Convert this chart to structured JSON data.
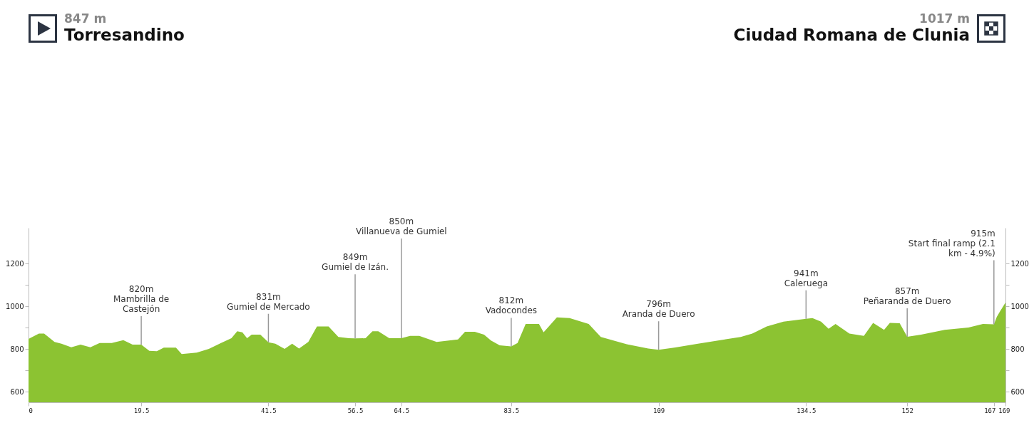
{
  "chart_data": {
    "type": "area",
    "annotations": [
      "847 m",
      "Torresandino",
      "1017 m",
      "Ciudad Romana de Clunia",
      {
        "text": "820m\nMambrilla de\nCastejón",
        "x": 19.5,
        "y": 820
      },
      {
        "text": "831m\nGumiel de Mercado",
        "x": 41.5,
        "y": 831
      },
      {
        "text": "849m\nGumiel de Izán.",
        "x": 56.5,
        "y": 849
      },
      {
        "text": "850m\nVillanueva de Gumiel",
        "x": 64.5,
        "y": 850
      },
      {
        "text": "812m\nVadocondes",
        "x": 83.5,
        "y": 812
      },
      {
        "text": "796m\nAranda de Duero",
        "x": 109,
        "y": 796
      },
      {
        "text": "941m\nCaleruega",
        "x": 134.5,
        "y": 941
      },
      {
        "text": "857m\nPeñaranda de Duero",
        "x": 152,
        "y": 857
      },
      {
        "text": "915m\nStart final ramp (2.1\nkm - 4.9%)",
        "x": 167,
        "y": 915
      }
    ],
    "x": [
      0,
      1.8,
      2.7,
      4.5,
      5.7,
      7.4,
      9,
      10.7,
      12.3,
      14.4,
      16.4,
      18,
      19.5,
      20.9,
      22.2,
      23.4,
      25.5,
      26.5,
      29.1,
      31.2,
      33.3,
      35.1,
      36.1,
      37,
      37.8,
      38.6,
      40.1,
      41.5,
      42.7,
      44.3,
      45.6,
      46.8,
      48.4,
      49.9,
      51.9,
      53.6,
      55.4,
      56.5,
      58.3,
      59.5,
      60.5,
      62.4,
      64.5,
      66,
      67.6,
      70.6,
      74.3,
      75.5,
      77.2,
      78.8,
      80,
      81.5,
      83.5,
      84.6,
      86,
      88.3,
      89.1,
      91.4,
      93.6,
      96.9,
      99,
      103.5,
      107.2,
      109,
      111.7,
      115.8,
      123.2,
      125.2,
      127.7,
      130.6,
      134.5,
      135.6,
      137.1,
      138.4,
      139.6,
      142,
      144.5,
      146.1,
      148,
      149,
      150.7,
      152,
      154.4,
      158.5,
      162.6,
      165.1,
      167,
      167.5,
      168.1,
      169
    ],
    "series": [
      {
        "color": "#8cc332",
        "values": [
          847,
          872,
          872,
          833,
          824,
          808,
          820,
          808,
          828,
          828,
          841,
          820,
          820,
          791,
          789,
          806,
          806,
          776,
          783,
          800,
          828,
          850,
          883,
          878,
          850,
          867,
          867,
          831,
          824,
          800,
          824,
          802,
          833,
          905,
          905,
          856,
          850,
          849,
          850,
          883,
          883,
          850,
          850,
          861,
          861,
          833,
          844,
          880,
          880,
          867,
          839,
          817,
          812,
          828,
          917,
          917,
          878,
          948,
          944,
          917,
          856,
          822,
          802,
          796,
          806,
          824,
          856,
          872,
          905,
          928,
          941,
          944,
          928,
          894,
          917,
          872,
          861,
          922,
          889,
          922,
          920,
          857,
          867,
          889,
          900,
          917,
          915,
          950,
          978,
          1017
        ]
      }
    ],
    "xlim": [
      0,
      169
    ],
    "xticks": [
      0,
      19.5,
      41.5,
      56.5,
      64.5,
      83.5,
      109,
      134.5,
      152,
      167,
      169
    ],
    "ylim": [
      550,
      1367
    ],
    "yticks": [
      600,
      {
        "value": 700,
        "label": null
      },
      800,
      {
        "value": 900,
        "label": null
      },
      1000,
      {
        "value": 1100,
        "label": null
      },
      1200
    ],
    "y2lim": [
      550,
      1367
    ],
    "y2ticks": [
      600,
      {
        "value": 700,
        "label": null
      },
      800,
      {
        "value": 900,
        "label": null
      },
      1000,
      {
        "value": 1100,
        "label": null
      },
      1200
    ]
  }
}
